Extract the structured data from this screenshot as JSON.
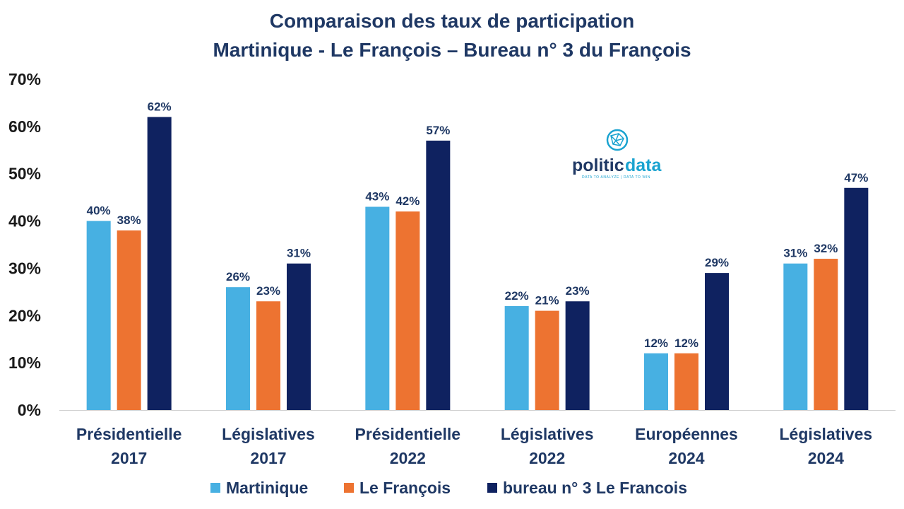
{
  "chart_data": {
    "type": "bar",
    "title": "Comparaison des taux de participation",
    "subtitle": "Martinique -  Le François – Bureau n° 3 du François",
    "categories": [
      [
        "Présidentielle",
        "2017"
      ],
      [
        "Législatives",
        "2017"
      ],
      [
        "Présidentielle",
        "2022"
      ],
      [
        "Législatives",
        "2022"
      ],
      [
        "Européennes",
        "2024"
      ],
      [
        "Législatives",
        "2024"
      ]
    ],
    "series": [
      {
        "name": "Martinique",
        "color": "#47b0e2",
        "values": [
          40,
          26,
          43,
          22,
          12,
          31
        ]
      },
      {
        "name": "Le François",
        "color": "#ed7331",
        "values": [
          38,
          23,
          42,
          21,
          12,
          32
        ]
      },
      {
        "name": "bureau n° 3 Le Francois",
        "color": "#0f2260",
        "values": [
          62,
          31,
          57,
          23,
          29,
          47
        ]
      }
    ],
    "ylim": [
      0,
      70
    ],
    "yticks": [
      "0%",
      "10%",
      "20%",
      "30%",
      "40%",
      "50%",
      "60%",
      "70%"
    ],
    "value_suffix": "%",
    "grid": false,
    "legend_position": "bottom"
  },
  "logo": {
    "text_a": "politic",
    "text_b": "data",
    "tagline": "DATA TO ANALYZE | DATA TO WIN",
    "icon": "globe-network-icon"
  }
}
